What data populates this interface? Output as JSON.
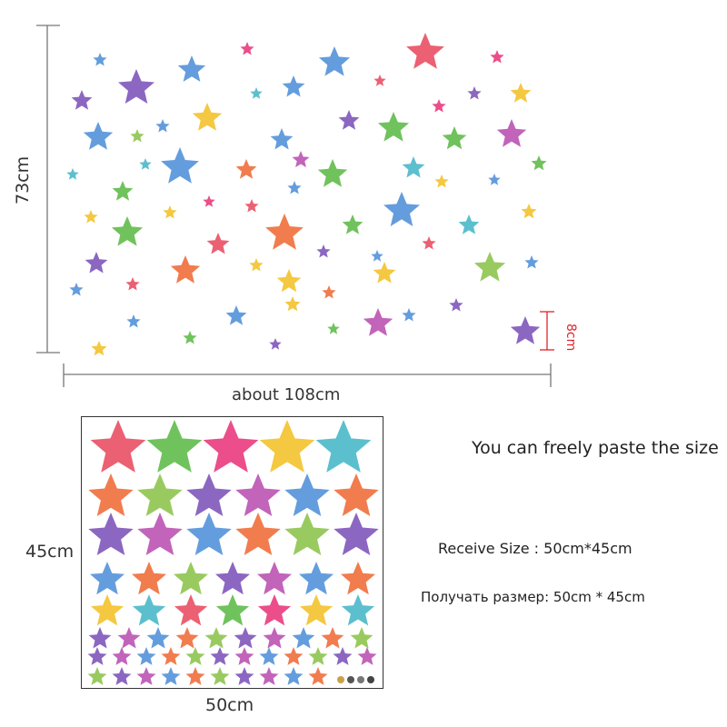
{
  "palette": [
    "#e84a5f",
    "#4f8fd8",
    "#f2c025",
    "#7b52b8",
    "#5cba47",
    "#ef6a35",
    "#45b6c7",
    "#b84fb0",
    "#e8357a",
    "#8bc34a"
  ],
  "dimensions": {
    "height_label": "73cm",
    "width_label": "about 108cm",
    "star_label": "8cm",
    "sheet_height_label": "45cm",
    "sheet_width_label": "50cm"
  },
  "texts": {
    "paste": "You can freely paste the size",
    "receive": "Receive Size : 50cm*45cm",
    "receive_ru": "Получать размер: 50cm * 45cm"
  },
  "icons": [
    "star-icon"
  ]
}
